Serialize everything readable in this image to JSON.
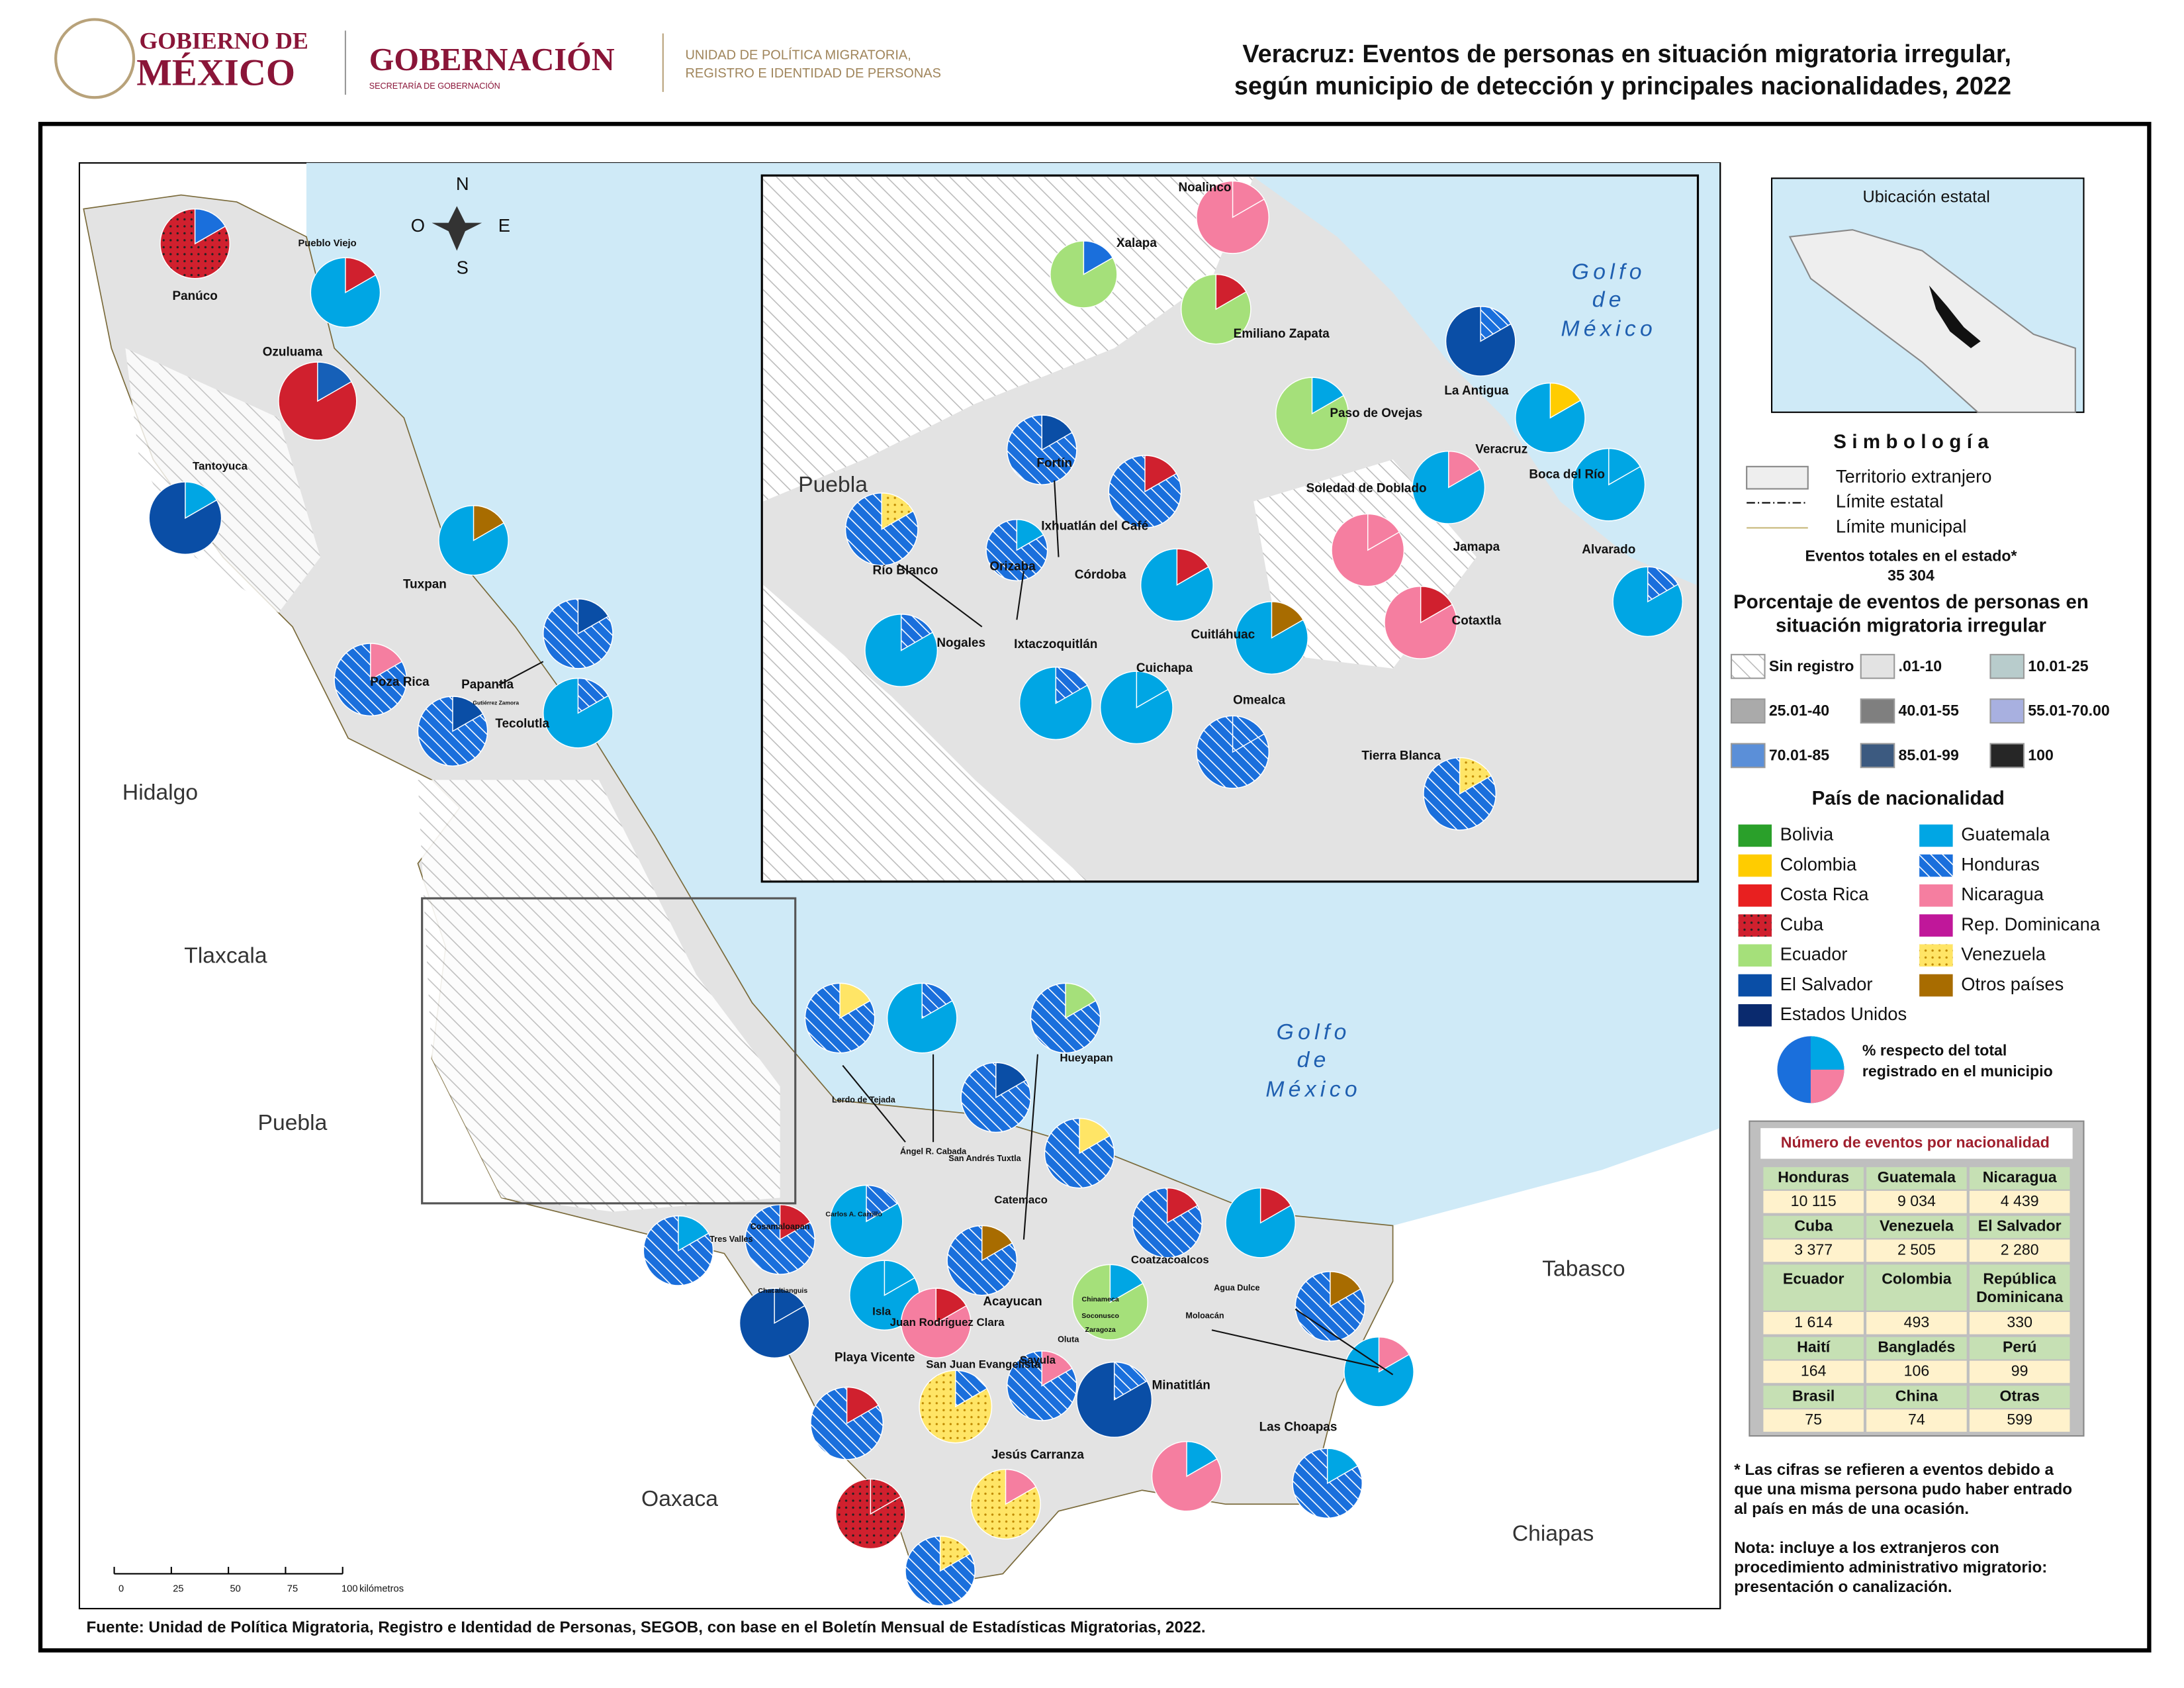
{
  "header": {
    "logo_line1": "GOBIERNO DE",
    "logo_line2": "MÉXICO",
    "ministry": "GOBERNACIÓN",
    "ministry_sub": "SECRETARÍA DE GOBERNACIÓN",
    "unit_line1": "UNIDAD DE POLÍTICA MIGRATORIA,",
    "unit_line2": "REGISTRO E IDENTIDAD DE PERSONAS",
    "title_line1": "Veracruz: Eventos de personas en situación migratoria irregular,",
    "title_line2": "según municipio de detección y principales nacionalidades, 2022"
  },
  "map": {
    "compass": [
      "N",
      "S",
      "E",
      "O"
    ],
    "states": [
      "Hidalgo",
      "Tlaxcala",
      "Puebla",
      "Oaxaca",
      "Chiapas",
      "Tabasco"
    ],
    "gulf": [
      "Golfo",
      "de",
      "México"
    ],
    "municipalities": [
      "Panúco",
      "Pueblo Viejo",
      "Ozuluama",
      "Tantoyuca",
      "Tuxpan",
      "Poza Rica",
      "Papantla",
      "Gutiérrez Zamora",
      "Tecolutla",
      "Lerdo de Tejada",
      "Ángel R. Cabada",
      "San Andrés Tuxtla",
      "Catemaco",
      "Hueyapan",
      "Cosamaloapan",
      "Tres Valles",
      "Carlos A. Carrillo",
      "Chacaltianguis",
      "Isla",
      "Juan Rodríguez Clara",
      "Acayucan",
      "Chinameca",
      "Soconusco",
      "Oluta",
      "Zaragoza",
      "Coatzacoalcos",
      "Agua Dulce",
      "Moloacán",
      "Minatitlán",
      "Playa Vicente",
      "San Juan Evangelista",
      "Sayula",
      "Jesús Carranza",
      "Las Choapas"
    ],
    "scale_ticks": [
      "0",
      "25",
      "50",
      "75",
      "100"
    ],
    "scale_unit": "kilómetros",
    "inset_state": "Puebla",
    "inset_gulf": [
      "Golfo",
      "de",
      "México"
    ],
    "inset_municipalities": [
      "Noalinco",
      "Xalapa",
      "Emiliano Zapata",
      "Paso de Ovejas",
      "La Antigua",
      "Veracruz",
      "Boca del Río",
      "Soledad de Doblado",
      "Jamapa",
      "Alvarado",
      "Cotaxtla",
      "Fortín",
      "Ixhuatlán del Café",
      "Córdoba",
      "Orizaba",
      "Río Blanco",
      "Nogales",
      "Ixtaczoquitlán",
      "Cuichapa",
      "Cuitláhuac",
      "Omealca",
      "Tierra Blanca"
    ]
  },
  "legend": {
    "location_title": "Ubicación estatal",
    "title": "Simbología",
    "symbols": [
      "Territorio extranjero",
      "Límite estatal",
      "Límite municipal"
    ],
    "total_label": "Eventos totales en el estado*",
    "total_value": "35 304",
    "percent_title_line1": "Porcentaje de eventos de personas en",
    "percent_title_line2": "situación migratoria irregular",
    "ranges": [
      "Sin registro",
      ".01-10",
      "10.01-25",
      "25.01-40",
      "40.01-55",
      "55.01-70.00",
      "70.01-85",
      "85.01-99",
      "100"
    ],
    "nationality_title": "País de nacionalidad",
    "nationalities": [
      "Bolivia",
      "Colombia",
      "Costa Rica",
      "Cuba",
      "Ecuador",
      "El Salvador",
      "Estados Unidos",
      "Guatemala",
      "Honduras",
      "Nicaragua",
      "Rep. Dominicana",
      "Venezuela",
      "Otros países"
    ],
    "pie_note_line1": "% respecto del total",
    "pie_note_line2": "registrado en el municipio"
  },
  "table": {
    "title": "Número de eventos por nacionalidad",
    "rows": [
      [
        [
          "Honduras",
          "10 115"
        ],
        [
          "Guatemala",
          "9 034"
        ],
        [
          "Nicaragua",
          "4 439"
        ]
      ],
      [
        [
          "Cuba",
          "3 377"
        ],
        [
          "Venezuela",
          "2 505"
        ],
        [
          "El Salvador",
          "2 280"
        ]
      ],
      [
        [
          "Ecuador",
          "1 614"
        ],
        [
          "Colombia",
          "493"
        ],
        [
          "República Dominicana",
          "330"
        ]
      ],
      [
        [
          "Haití",
          "164"
        ],
        [
          "Bangladés",
          "106"
        ],
        [
          "Perú",
          "99"
        ]
      ],
      [
        [
          "Brasil",
          "75"
        ],
        [
          "China",
          "74"
        ],
        [
          "Otras",
          "599"
        ]
      ]
    ]
  },
  "notes": {
    "note1": [
      "* Las cifras se refieren a eventos debido a",
      "que una misma persona pudo haber entrado",
      "al país en más de una ocasión."
    ],
    "note2": [
      "Nota: incluye a los extranjeros con",
      "procedimiento administrativo migratorio:",
      "presentación o canalización."
    ]
  },
  "source": "Fuente: Unidad de Política Migratoria, Registro e Identidad de Personas, SEGOB, con base en el Boletín Mensual de Estadísticas Migratorias, 2022."
}
